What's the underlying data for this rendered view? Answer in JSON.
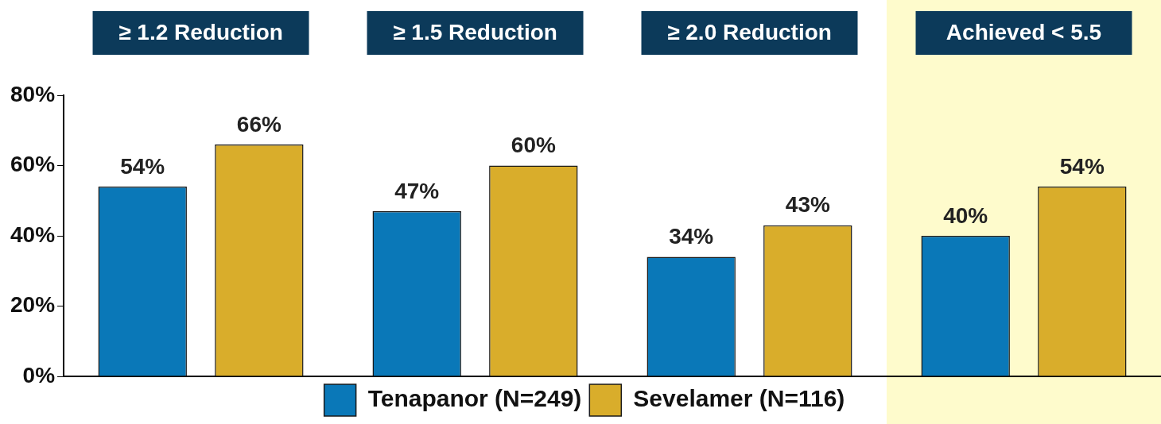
{
  "chart_data": {
    "type": "bar",
    "categories": [
      "≥ 1.2 Reduction",
      "≥ 1.5 Reduction",
      "≥ 2.0 Reduction",
      "Achieved < 5.5"
    ],
    "series": [
      {
        "name": "Tenapanor (N=249)",
        "color": "#0a78b8",
        "values": [
          54,
          47,
          34,
          40
        ]
      },
      {
        "name": "Sevelamer (N=116)",
        "color": "#d9ad2b",
        "values": [
          66,
          60,
          43,
          54
        ]
      }
    ],
    "ylim": [
      0,
      80
    ],
    "yticks": [
      {
        "value": 0,
        "label": "0%"
      },
      {
        "value": 20,
        "label": "20%"
      },
      {
        "value": 40,
        "label": "40%"
      },
      {
        "value": 60,
        "label": "60%"
      },
      {
        "value": 80,
        "label": "80%"
      }
    ],
    "value_labels": [
      [
        "54%",
        "47%",
        "34%",
        "40%"
      ],
      [
        "66%",
        "60%",
        "43%",
        "54%"
      ]
    ],
    "bands": [
      {
        "axis": "x",
        "from": "Achieved < 5.5",
        "to": "Achieved < 5.5",
        "color": "#fefbcc"
      }
    ],
    "grid": false,
    "legend": "bottom"
  }
}
